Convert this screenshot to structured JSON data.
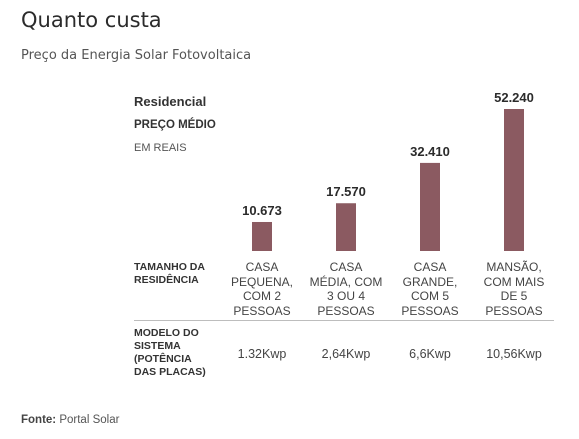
{
  "header": {
    "title": "Quanto custa",
    "subtitle": "Preço da Energia Solar Fotovoltaica"
  },
  "chart_data": {
    "type": "bar",
    "title": "Residencial",
    "ylabel": "PREÇO MÉDIO",
    "unit": "EM REAIS",
    "categories": [
      [
        "CASA",
        "PEQUENA,",
        "COM 2",
        "PESSOAS"
      ],
      [
        "CASA",
        "MÉDIA, COM",
        "3 OU 4",
        "PESSOAS"
      ],
      [
        "CASA",
        "GRANDE,",
        "COM 5",
        "PESSOAS"
      ],
      [
        "MANSÃO,",
        "COM MAIS",
        "DE 5",
        "PESSOAS"
      ]
    ],
    "values": [
      10673,
      17570,
      32410,
      52240
    ],
    "value_labels": [
      "10.673",
      "17.570",
      "32.410",
      "52.240"
    ],
    "ylim": [
      0,
      52240
    ],
    "bar_color": "#8b5a61",
    "grid": false
  },
  "table": {
    "size_header": [
      "TAMANHO DA",
      "RESIDÊNCIA"
    ],
    "system_header": [
      "MODELO DO",
      "SISTEMA",
      "(POTÊNCIA",
      "DAS PLACAS)"
    ],
    "system_values": [
      "1.32Kwp",
      "2,64Kwp",
      "6,6Kwp",
      "10,56Kwp"
    ]
  },
  "footer": {
    "source_label": "Fonte:",
    "source_text": " Portal Solar"
  }
}
